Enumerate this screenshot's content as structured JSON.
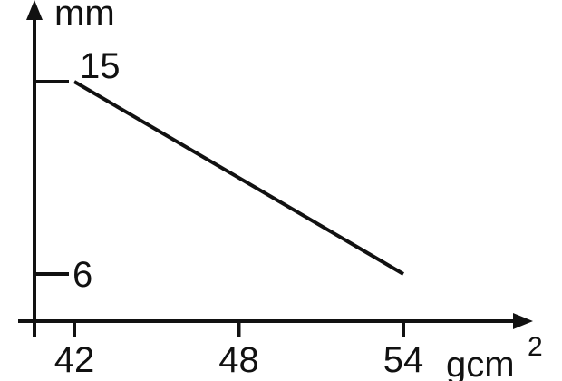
{
  "chart_data": {
    "type": "line",
    "xlabel": "gcm",
    "xlabel_sup": "2",
    "ylabel": "mm",
    "x_ticks": [
      "42",
      "48",
      "54"
    ],
    "y_ticks": [
      "15",
      "6"
    ],
    "series": [
      {
        "x": [
          42,
          54
        ],
        "y": [
          15,
          6
        ]
      }
    ],
    "grid": false,
    "line_color": "#111111"
  }
}
